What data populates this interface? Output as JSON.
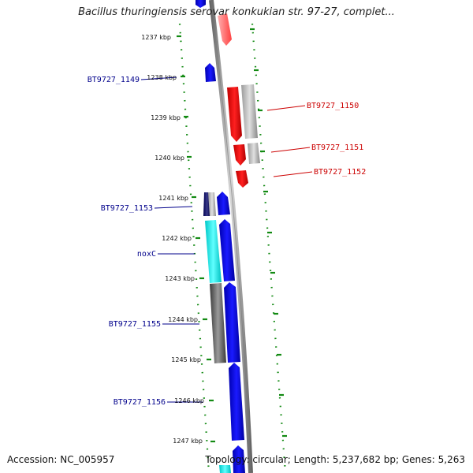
{
  "title": "Bacillus thuringiensis serovar konkukian str. 97-27, complet...",
  "footer": {
    "accession": "Accession: NC_005957",
    "summary": "Topology: circular; Length: 5,237,682 bp; Genes: 5,263"
  },
  "ticks": [
    "1237 kbp",
    "1238 kbp",
    "1239 kbp",
    "1240 kbp",
    "1241 kbp",
    "1242 kbp",
    "1243 kbp",
    "1244 kbp",
    "1245 kbp",
    "1246 kbp",
    "1247 kbp"
  ],
  "colors": {
    "forward": "#ff0000",
    "reverse": "#0000ff",
    "ring_green": "#138a13",
    "backbone": "#888888",
    "label_left": "#00008b",
    "label_right": "#cc0000"
  },
  "gene_labels": {
    "left": [
      "BT9727_1149",
      "BT9727_1153",
      "noxC",
      "BT9727_1155",
      "BT9727_1156"
    ],
    "right": [
      "BT9727_1150",
      "BT9727_1151",
      "BT9727_1152"
    ]
  }
}
